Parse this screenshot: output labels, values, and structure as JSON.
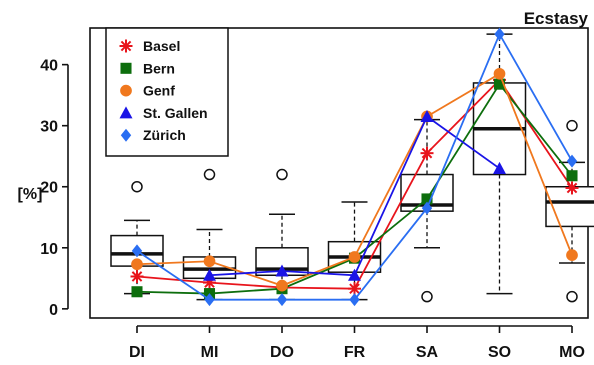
{
  "chart_data": {
    "type": "box",
    "title": "Ecstasy",
    "ylabel": "[%]",
    "xlabel": "",
    "ylim": [
      -1.5,
      46
    ],
    "yticks": [
      0,
      10,
      20,
      30,
      40
    ],
    "categories": [
      "DI",
      "MI",
      "DO",
      "FR",
      "SA",
      "SO",
      "MO"
    ],
    "grid": false,
    "legend_position": "top-left",
    "boxes": [
      {
        "category": "DI",
        "whisker_low": 2.5,
        "q1": 7,
        "median": 9,
        "q3": 12,
        "whisker_high": 14.5,
        "outliers": [
          20
        ]
      },
      {
        "category": "MI",
        "whisker_low": 1.5,
        "q1": 5,
        "median": 6.5,
        "q3": 8.5,
        "whisker_high": 13,
        "outliers": [
          22
        ]
      },
      {
        "category": "DO",
        "whisker_low": 1.5,
        "q1": 5.5,
        "median": 6.5,
        "q3": 10,
        "whisker_high": 15.5,
        "outliers": [
          22
        ]
      },
      {
        "category": "FR",
        "whisker_low": 1.5,
        "q1": 6,
        "median": 8.5,
        "q3": 11,
        "whisker_high": 17.5,
        "outliers": []
      },
      {
        "category": "SA",
        "whisker_low": 10,
        "q1": 16,
        "median": 17,
        "q3": 22,
        "whisker_high": 31,
        "outliers": [
          2
        ]
      },
      {
        "category": "SO",
        "whisker_low": 2.5,
        "q1": 22,
        "median": 29.5,
        "q3": 37,
        "whisker_high": 45,
        "outliers": []
      },
      {
        "category": "MO",
        "whisker_low": 7.5,
        "q1": 13.5,
        "median": 17.5,
        "q3": 20,
        "whisker_high": 24,
        "outliers": [
          2,
          30
        ]
      }
    ],
    "series": [
      {
        "name": "Basel",
        "color": "#e8141c",
        "marker": "asterisk",
        "values": [
          5.3,
          4.3,
          3.5,
          3.3,
          25.5,
          37.5,
          19.8
        ]
      },
      {
        "name": "Bern",
        "color": "#0d6e0d",
        "marker": "square",
        "values": [
          2.8,
          2.5,
          3.3,
          8.3,
          18,
          36.8,
          21.8
        ]
      },
      {
        "name": "Genf",
        "color": "#f0781e",
        "marker": "circle",
        "values": [
          7.3,
          7.8,
          3.8,
          8.5,
          31.5,
          38.5,
          8.8
        ]
      },
      {
        "name": "St. Gallen",
        "color": "#1a14e6",
        "marker": "triangle",
        "values": [
          null,
          5.5,
          6.2,
          5.5,
          31.5,
          23,
          null
        ]
      },
      {
        "name": "Zürich",
        "color": "#2a6ef2",
        "marker": "diamond",
        "values": [
          9.5,
          1.5,
          1.5,
          1.5,
          16.5,
          45,
          24.2
        ]
      }
    ]
  }
}
